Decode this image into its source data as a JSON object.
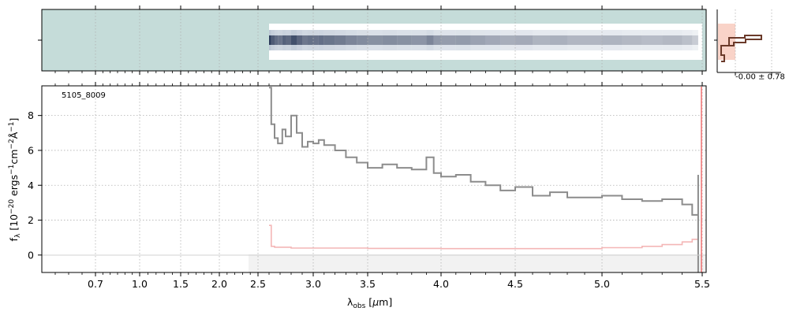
{
  "chart_data": {
    "type": "line",
    "object_id": "5105_8009",
    "x_ticks": [
      {
        "value": 0.7,
        "label": "0.7"
      },
      {
        "value": 1.0,
        "label": "1.0"
      },
      {
        "value": 1.5,
        "label": "1.5"
      },
      {
        "value": 2.0,
        "label": "2.0"
      },
      {
        "value": 2.5,
        "label": "2.5"
      },
      {
        "value": 3.0,
        "label": "3.0"
      },
      {
        "value": 3.5,
        "label": "3.5"
      },
      {
        "value": 4.0,
        "label": "4.0"
      },
      {
        "value": 4.5,
        "label": "4.5"
      },
      {
        "value": 5.0,
        "label": "5.0"
      },
      {
        "value": 5.5,
        "label": "5.5"
      }
    ],
    "y_ticks": [
      0,
      2,
      4,
      6,
      8
    ],
    "xlim": [
      0.5,
      5.53
    ],
    "ylim": [
      -1.0,
      9.7
    ],
    "series": [
      {
        "key": "flux",
        "color": "#8c8c8c",
        "x": [
          2.6,
          2.62,
          2.65,
          2.68,
          2.72,
          2.75,
          2.8,
          2.85,
          2.9,
          2.95,
          3.0,
          3.05,
          3.1,
          3.2,
          3.3,
          3.4,
          3.5,
          3.6,
          3.7,
          3.8,
          3.9,
          3.95,
          4.0,
          4.1,
          4.2,
          4.3,
          4.4,
          4.5,
          4.6,
          4.7,
          4.8,
          4.9,
          5.0,
          5.1,
          5.2,
          5.3,
          5.4,
          5.45,
          5.48
        ],
        "y": [
          9.6,
          7.5,
          6.7,
          6.4,
          7.2,
          6.8,
          8.0,
          7.0,
          6.2,
          6.5,
          6.4,
          6.6,
          6.3,
          6.0,
          5.6,
          5.3,
          5.0,
          5.2,
          5.0,
          4.9,
          5.6,
          4.7,
          4.5,
          4.6,
          4.2,
          4.0,
          3.7,
          3.9,
          3.4,
          3.6,
          3.3,
          3.3,
          3.4,
          3.2,
          3.1,
          3.2,
          2.9,
          2.3,
          4.6
        ]
      },
      {
        "key": "error",
        "color": "#f4b6b6",
        "x": [
          2.6,
          2.62,
          2.65,
          2.8,
          3.0,
          3.5,
          4.0,
          4.5,
          5.0,
          5.2,
          5.3,
          5.4,
          5.45,
          5.48
        ],
        "y": [
          1.7,
          0.5,
          0.45,
          0.4,
          0.4,
          0.38,
          0.37,
          0.37,
          0.42,
          0.5,
          0.6,
          0.75,
          0.9,
          1.1
        ]
      }
    ],
    "cross_section_label": "-0.00 ± 0.78"
  }
}
